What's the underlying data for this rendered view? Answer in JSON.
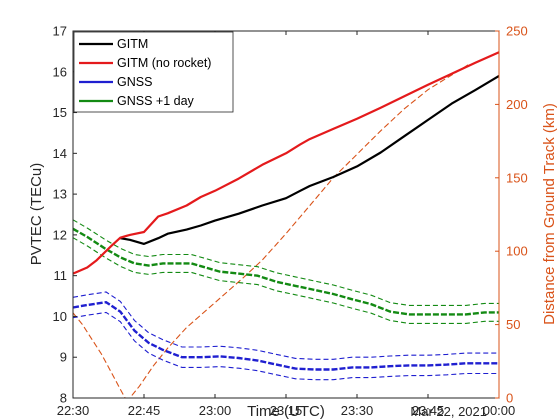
{
  "chart_data": {
    "type": "line",
    "xlabel": "Time (UTC)",
    "x_annotation": "Mar 22, 2021",
    "ylabel_left": "PVTEC (TECu)",
    "ylabel_right": "Distance from Ground Track (km)",
    "xlim_minutes": [
      0,
      90
    ],
    "ylim_left": [
      8,
      17
    ],
    "ylim_right": [
      0,
      250
    ],
    "x_ticks": [
      {
        "t": 0,
        "label": "22:30"
      },
      {
        "t": 15,
        "label": "22:45"
      },
      {
        "t": 30,
        "label": "23:00"
      },
      {
        "t": 45,
        "label": "23:15"
      },
      {
        "t": 60,
        "label": "23:30"
      },
      {
        "t": 75,
        "label": "23:45"
      },
      {
        "t": 90,
        "label": "00:00"
      }
    ],
    "y_ticks_left": [
      8,
      9,
      10,
      11,
      12,
      13,
      14,
      15,
      16,
      17
    ],
    "y_ticks_right": [
      0,
      50,
      100,
      150,
      200,
      250
    ],
    "legend_position": "top-left",
    "colors": {
      "gitm": "#000000",
      "gitm_no_rocket": "#e41a1c",
      "gnss": "#1f1fd0",
      "gnss_plus1": "#138a13",
      "distance": "#d95319"
    },
    "series": [
      {
        "name": "GITM",
        "key": "gitm",
        "axis": "left",
        "style": "solid",
        "points": [
          [
            10,
            11.92
          ],
          [
            12,
            11.88
          ],
          [
            15,
            11.78
          ],
          [
            18,
            11.92
          ],
          [
            20,
            12.03
          ],
          [
            24,
            12.13
          ],
          [
            27,
            12.23
          ],
          [
            30,
            12.35
          ],
          [
            35,
            12.52
          ],
          [
            40,
            12.72
          ],
          [
            45,
            12.9
          ],
          [
            48,
            13.08
          ],
          [
            50,
            13.2
          ],
          [
            55,
            13.42
          ],
          [
            60,
            13.68
          ],
          [
            65,
            14.02
          ],
          [
            70,
            14.42
          ],
          [
            75,
            14.82
          ],
          [
            80,
            15.22
          ],
          [
            85,
            15.55
          ],
          [
            90,
            15.9
          ]
        ]
      },
      {
        "name": "GITM (no rocket)",
        "key": "gitm_no_rocket",
        "axis": "left",
        "style": "solid",
        "points": [
          [
            0,
            11.05
          ],
          [
            3,
            11.2
          ],
          [
            5,
            11.38
          ],
          [
            8,
            11.72
          ],
          [
            10,
            11.93
          ],
          [
            12,
            12.0
          ],
          [
            15,
            12.07
          ],
          [
            18,
            12.45
          ],
          [
            20,
            12.53
          ],
          [
            24,
            12.72
          ],
          [
            27,
            12.93
          ],
          [
            30,
            13.08
          ],
          [
            35,
            13.38
          ],
          [
            40,
            13.72
          ],
          [
            45,
            14.0
          ],
          [
            48,
            14.22
          ],
          [
            50,
            14.35
          ],
          [
            55,
            14.6
          ],
          [
            60,
            14.85
          ],
          [
            65,
            15.12
          ],
          [
            70,
            15.4
          ],
          [
            75,
            15.68
          ],
          [
            80,
            15.95
          ],
          [
            85,
            16.22
          ],
          [
            90,
            16.48
          ]
        ]
      },
      {
        "name": "GNSS",
        "key": "gnss",
        "axis": "left",
        "style": "mean-with-bounds",
        "bound_offset": 0.25,
        "points": [
          [
            0,
            10.22
          ],
          [
            3,
            10.28
          ],
          [
            7,
            10.35
          ],
          [
            10,
            10.12
          ],
          [
            13,
            9.65
          ],
          [
            16,
            9.35
          ],
          [
            19,
            9.18
          ],
          [
            23,
            9.0
          ],
          [
            27,
            9.0
          ],
          [
            31,
            9.02
          ],
          [
            35,
            8.98
          ],
          [
            39,
            8.92
          ],
          [
            43,
            8.82
          ],
          [
            47,
            8.72
          ],
          [
            51,
            8.7
          ],
          [
            55,
            8.7
          ],
          [
            59,
            8.75
          ],
          [
            63,
            8.75
          ],
          [
            67,
            8.78
          ],
          [
            71,
            8.8
          ],
          [
            75,
            8.8
          ],
          [
            79,
            8.82
          ],
          [
            83,
            8.85
          ],
          [
            87,
            8.85
          ],
          [
            90,
            8.85
          ]
        ]
      },
      {
        "name": "GNSS +1 day",
        "key": "gnss_plus1",
        "axis": "left",
        "style": "mean-with-bounds",
        "bound_offset": 0.22,
        "points": [
          [
            0,
            12.15
          ],
          [
            3,
            11.95
          ],
          [
            7,
            11.65
          ],
          [
            10,
            11.45
          ],
          [
            13,
            11.3
          ],
          [
            16,
            11.25
          ],
          [
            19,
            11.3
          ],
          [
            22,
            11.3
          ],
          [
            25,
            11.3
          ],
          [
            28,
            11.2
          ],
          [
            31,
            11.1
          ],
          [
            35,
            11.05
          ],
          [
            39,
            11.0
          ],
          [
            43,
            10.85
          ],
          [
            47,
            10.75
          ],
          [
            51,
            10.65
          ],
          [
            55,
            10.55
          ],
          [
            59,
            10.42
          ],
          [
            63,
            10.3
          ],
          [
            67,
            10.12
          ],
          [
            71,
            10.05
          ],
          [
            75,
            10.05
          ],
          [
            79,
            10.05
          ],
          [
            83,
            10.05
          ],
          [
            87,
            10.1
          ],
          [
            90,
            10.1
          ]
        ]
      },
      {
        "name": "Distance from Ground Track",
        "key": "distance",
        "axis": "right",
        "style": "dashed",
        "points": [
          [
            0,
            58
          ],
          [
            2,
            50
          ],
          [
            4,
            40
          ],
          [
            6,
            30
          ],
          [
            8,
            18
          ],
          [
            10,
            6
          ],
          [
            11,
            0
          ],
          [
            12,
            0
          ],
          [
            14,
            8
          ],
          [
            17,
            22
          ],
          [
            20,
            34
          ],
          [
            24,
            48
          ],
          [
            30,
            65
          ],
          [
            36,
            82
          ],
          [
            40,
            94
          ],
          [
            45,
            112
          ],
          [
            50,
            131
          ],
          [
            55,
            150
          ],
          [
            60,
            166
          ],
          [
            65,
            182
          ],
          [
            70,
            197
          ],
          [
            75,
            210
          ],
          [
            80,
            220
          ],
          [
            84,
            228
          ]
        ]
      }
    ]
  }
}
